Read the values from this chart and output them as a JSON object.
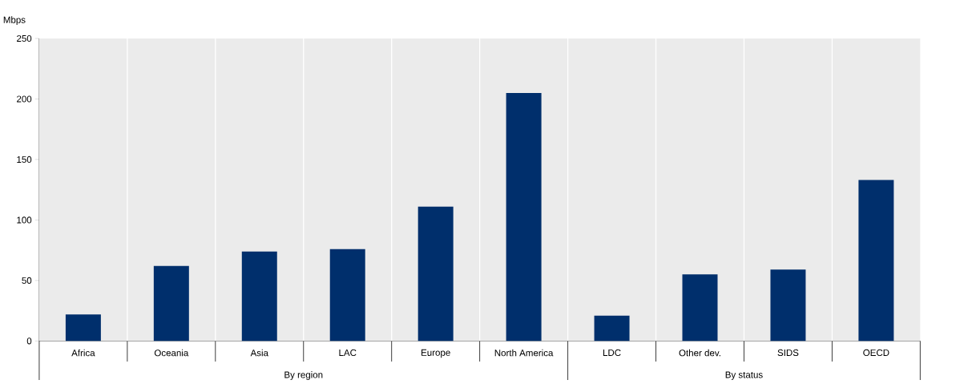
{
  "chart_data": {
    "type": "bar",
    "ylabel": "Mbps",
    "categories": [
      "Africa",
      "Oceania",
      "Asia",
      "LAC",
      "Europe",
      "North America",
      "LDC",
      "Other dev.",
      "SIDS",
      "OECD"
    ],
    "values": [
      22,
      62,
      74,
      76,
      111,
      205,
      21,
      55,
      59,
      133
    ],
    "color": "#002f6c",
    "ylim": [
      0,
      250
    ],
    "yticks": [
      0,
      50,
      100,
      150,
      200,
      250
    ],
    "grid": "x",
    "annotations": [
      "By region",
      "By status"
    ]
  }
}
